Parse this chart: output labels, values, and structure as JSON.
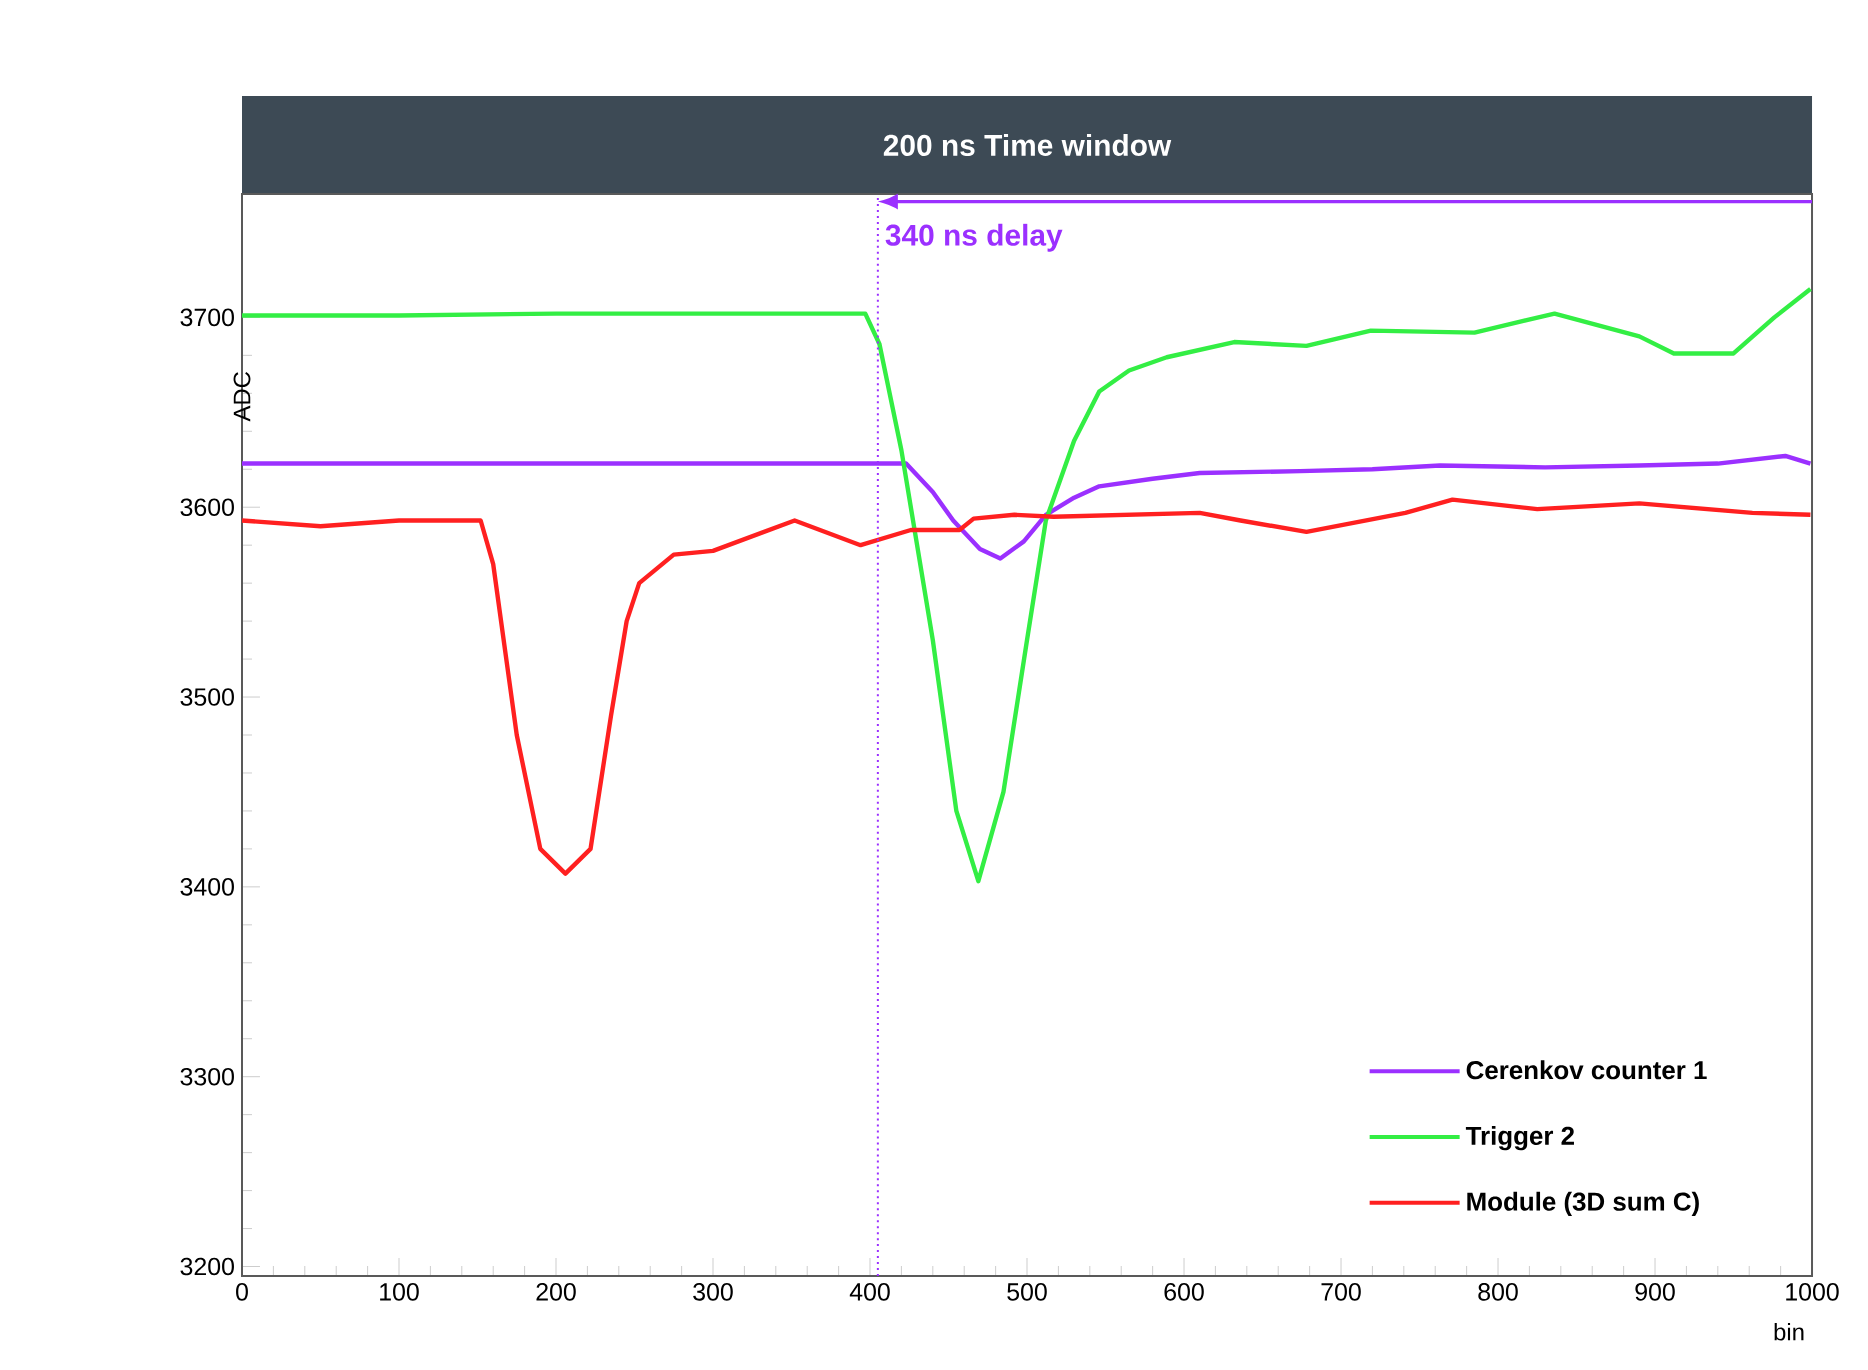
{
  "chart_data": {
    "type": "line",
    "title": "200 ns Time window",
    "xlabel": "bin",
    "ylabel": "ADC",
    "xlim": [
      0,
      1000
    ],
    "xticks": [
      0,
      100,
      200,
      300,
      400,
      500,
      600,
      700,
      800,
      900,
      1000
    ],
    "ylim": [
      3195,
      3765
    ],
    "yticks": [
      3200,
      3300,
      3400,
      3500,
      3600,
      3700
    ],
    "legend": "bottom right",
    "grid": false,
    "marker": "none",
    "line_style": "solid",
    "ref_lines": [
      {
        "axis": "x",
        "value": 405,
        "label": "340 ns delay",
        "color": "#9b30ff",
        "line_style": "dotted"
      }
    ],
    "series": [
      {
        "name": "Cerenkov counter 1",
        "color": "#9b30ff",
        "x": [
          0,
          100,
          200,
          300,
          400,
          423,
          440,
          453,
          470,
          483,
          498,
          512,
          530,
          546,
          580,
          610,
          674,
          720,
          763,
          830,
          890,
          940,
          983,
          999
        ],
        "values": [
          3623,
          3623,
          3623,
          3623,
          3623,
          3623,
          3608,
          3593,
          3578,
          3573,
          3582,
          3596,
          3605,
          3611,
          3615,
          3618,
          3619,
          3620,
          3622,
          3621,
          3622,
          3623,
          3627,
          3623
        ]
      },
      {
        "name": "Trigger 2",
        "color": "#33ee44",
        "x": [
          0,
          100,
          200,
          300,
          397,
          406,
          420,
          440,
          455,
          469,
          485,
          500,
          512,
          530,
          546,
          565,
          589,
          632,
          678,
          719,
          785,
          836,
          890,
          912,
          950,
          976,
          999
        ],
        "values": [
          3701,
          3701,
          3702,
          3702,
          3702,
          3686,
          3630,
          3530,
          3440,
          3403,
          3450,
          3530,
          3593,
          3635,
          3661,
          3672,
          3679,
          3687,
          3685,
          3693,
          3692,
          3702,
          3690,
          3681,
          3681,
          3700,
          3715
        ]
      },
      {
        "name": "Module (3D sum C)",
        "color": "#ff2020",
        "x": [
          0,
          50,
          100,
          152,
          160,
          175,
          190,
          206,
          222,
          235,
          245,
          253,
          275,
          300,
          352,
          394,
          426,
          457,
          466,
          492,
          517,
          610,
          636,
          678,
          741,
          771,
          825,
          890,
          962,
          999
        ],
        "values": [
          3593,
          3590,
          3593,
          3593,
          3570,
          3480,
          3420,
          3407,
          3420,
          3490,
          3540,
          3560,
          3575,
          3577,
          3593,
          3580,
          3588,
          3588,
          3594,
          3596,
          3595,
          3597,
          3593,
          3587,
          3597,
          3604,
          3599,
          3602,
          3597,
          3596
        ]
      }
    ]
  }
}
